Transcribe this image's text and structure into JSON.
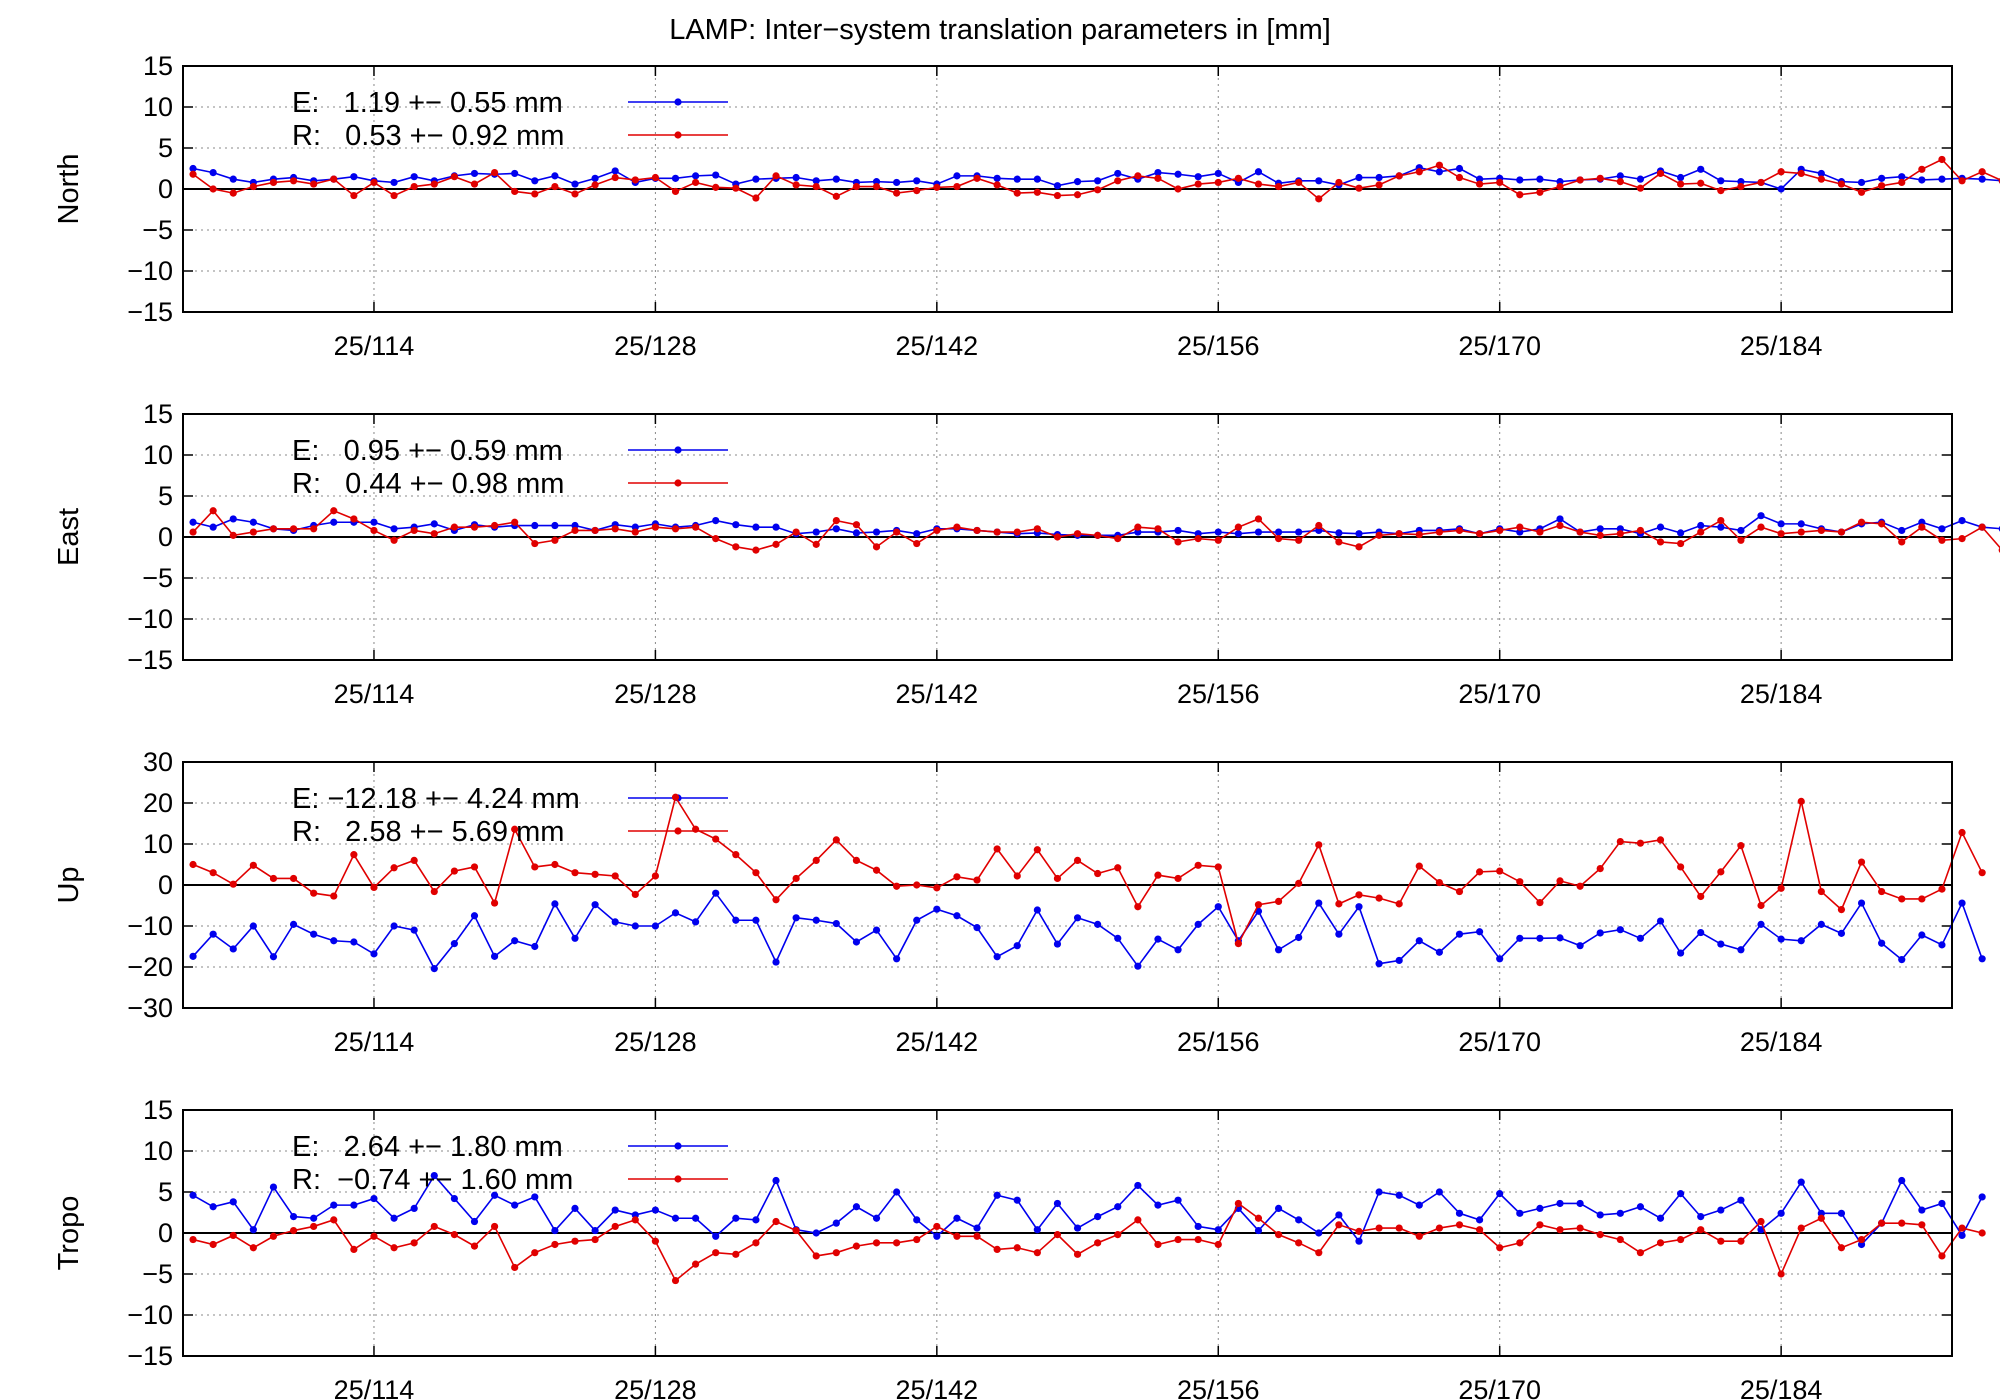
{
  "title": "LAMP: Inter−system translation parameters in [mm]",
  "colors": {
    "E": "#0000ee",
    "R": "#e00000",
    "grid": "#888888",
    "axis": "#000000"
  },
  "chart_data": [
    {
      "type": "line",
      "ylabel": "North",
      "ylim": [
        -15,
        15
      ],
      "yticks": [
        15,
        10,
        5,
        0,
        -5,
        -10,
        -15
      ],
      "xlim": [
        104.5,
        192.5
      ],
      "xticks": [
        114,
        128,
        142,
        156,
        170,
        184
      ],
      "xtick_labels": [
        "25/114",
        "25/128",
        "25/142",
        "25/156",
        "25/170",
        "25/184"
      ],
      "grid": true,
      "legend": "top-left",
      "series": [
        {
          "name": "E:   1.19 +− 0.55 mm",
          "color": "#0000ee",
          "values": [
            2.5,
            2.0,
            1.2,
            0.8,
            1.2,
            1.4,
            1.0,
            1.2,
            1.5,
            1.0,
            0.8,
            1.5,
            1.0,
            1.6,
            1.9,
            1.8,
            1.9,
            1.0,
            1.6,
            0.6,
            1.3,
            2.2,
            0.8,
            1.3,
            1.3,
            1.6,
            1.7,
            0.6,
            1.2,
            1.3,
            1.4,
            1.0,
            1.2,
            0.8,
            0.9,
            0.8,
            1.0,
            0.6,
            1.6,
            1.6,
            1.3,
            1.2,
            1.2,
            0.4,
            0.9,
            1.0,
            1.9,
            1.2,
            2.0,
            1.8,
            1.5,
            1.9,
            0.8,
            2.1,
            0.7,
            1.0,
            1.0,
            0.5,
            1.4,
            1.4,
            1.6,
            2.6,
            2.1,
            2.5,
            1.2,
            1.3,
            1.1,
            1.2,
            0.9,
            1.1,
            1.2,
            1.6,
            1.2,
            2.2,
            1.4,
            2.4,
            1.0,
            0.9,
            0.8,
            0.0,
            2.4,
            1.9,
            0.9,
            0.8,
            1.3,
            1.5,
            1.1,
            1.2,
            1.3,
            1.2,
            1.0
          ]
        },
        {
          "name": "R:   0.53 +− 0.92 mm",
          "color": "#e00000",
          "values": [
            1.8,
            0.0,
            -0.5,
            0.3,
            0.8,
            1.0,
            0.6,
            1.2,
            -0.8,
            0.8,
            -0.8,
            0.3,
            0.6,
            1.5,
            0.6,
            2.0,
            -0.3,
            -0.6,
            0.3,
            -0.6,
            0.5,
            1.4,
            1.1,
            1.4,
            -0.3,
            0.8,
            0.2,
            0.1,
            -1.1,
            1.6,
            0.5,
            0.3,
            -0.9,
            0.3,
            0.3,
            -0.5,
            -0.2,
            0.2,
            0.3,
            1.3,
            0.5,
            -0.5,
            -0.4,
            -0.8,
            -0.7,
            -0.1,
            1.0,
            1.6,
            1.3,
            0.0,
            0.6,
            0.8,
            1.3,
            0.6,
            0.3,
            0.8,
            -1.2,
            0.8,
            0.1,
            0.5,
            1.6,
            2.1,
            2.9,
            1.4,
            0.6,
            0.8,
            -0.7,
            -0.4,
            0.3,
            1.1,
            1.3,
            0.9,
            0.1,
            1.9,
            0.6,
            0.7,
            -0.2,
            0.3,
            0.8,
            2.1,
            1.9,
            1.2,
            0.6,
            -0.4,
            0.4,
            0.8,
            2.4,
            3.6,
            1.0,
            2.1,
            1.0
          ]
        }
      ]
    },
    {
      "type": "line",
      "ylabel": "East",
      "ylim": [
        -15,
        15
      ],
      "yticks": [
        15,
        10,
        5,
        0,
        -5,
        -10,
        -15
      ],
      "xlim": [
        104.5,
        192.5
      ],
      "xticks": [
        114,
        128,
        142,
        156,
        170,
        184
      ],
      "xtick_labels": [
        "25/114",
        "25/128",
        "25/142",
        "25/156",
        "25/170",
        "25/184"
      ],
      "grid": true,
      "legend": "top-left",
      "series": [
        {
          "name": "E:   0.95 +− 0.59 mm",
          "color": "#0000ee",
          "values": [
            1.8,
            1.2,
            2.2,
            1.8,
            1.0,
            0.8,
            1.4,
            1.8,
            1.8,
            1.8,
            1.0,
            1.2,
            1.6,
            0.8,
            1.5,
            1.2,
            1.4,
            1.4,
            1.4,
            1.4,
            0.8,
            1.5,
            1.2,
            1.6,
            1.2,
            1.4,
            2.0,
            1.5,
            1.2,
            1.2,
            0.4,
            0.6,
            1.0,
            0.5,
            0.6,
            0.8,
            0.4,
            1.0,
            1.0,
            0.8,
            0.6,
            0.4,
            0.5,
            0.3,
            0.2,
            0.2,
            0.2,
            0.6,
            0.6,
            0.8,
            0.4,
            0.6,
            0.4,
            0.6,
            0.6,
            0.6,
            0.8,
            0.5,
            0.4,
            0.6,
            0.4,
            0.8,
            0.8,
            1.0,
            0.4,
            1.0,
            0.6,
            1.0,
            2.2,
            0.6,
            1.0,
            1.0,
            0.4,
            1.2,
            0.5,
            1.4,
            1.2,
            0.8,
            2.6,
            1.6,
            1.6,
            1.0,
            0.6,
            1.6,
            1.8,
            0.8,
            1.8,
            1.0,
            2.0,
            1.2,
            1.0
          ]
        },
        {
          "name": "R:   0.44 +− 0.98 mm",
          "color": "#e00000",
          "values": [
            0.6,
            3.2,
            0.2,
            0.6,
            1.0,
            1.0,
            1.0,
            3.2,
            2.2,
            0.8,
            -0.4,
            0.8,
            0.4,
            1.2,
            1.2,
            1.4,
            1.8,
            -0.8,
            -0.4,
            0.8,
            0.8,
            1.0,
            0.6,
            1.2,
            1.0,
            1.2,
            -0.2,
            -1.2,
            -1.6,
            -0.9,
            0.6,
            -0.9,
            2.0,
            1.5,
            -1.2,
            0.6,
            -0.8,
            0.8,
            1.2,
            0.8,
            0.6,
            0.6,
            1.0,
            0.0,
            0.4,
            0.2,
            -0.2,
            1.2,
            1.0,
            -0.6,
            -0.2,
            -0.4,
            1.2,
            2.2,
            -0.2,
            -0.4,
            1.4,
            -0.6,
            -1.2,
            0.2,
            0.4,
            0.3,
            0.6,
            0.8,
            0.4,
            0.8,
            1.2,
            0.6,
            1.4,
            0.6,
            0.2,
            0.4,
            0.8,
            -0.6,
            -0.8,
            0.6,
            2.0,
            -0.4,
            1.2,
            0.4,
            0.6,
            0.8,
            0.6,
            1.8,
            1.6,
            -0.6,
            1.2,
            -0.4,
            -0.2,
            1.2,
            -1.6
          ]
        }
      ]
    },
    {
      "type": "line",
      "ylabel": "Up",
      "ylim": [
        -30,
        30
      ],
      "yticks": [
        30,
        20,
        10,
        0,
        -10,
        -20,
        -30
      ],
      "xlim": [
        104.5,
        192.5
      ],
      "xticks": [
        114,
        128,
        142,
        156,
        170,
        184
      ],
      "xtick_labels": [
        "25/114",
        "25/128",
        "25/142",
        "25/156",
        "25/170",
        "25/184"
      ],
      "grid": true,
      "legend": "top-left",
      "series": [
        {
          "name": "E: −12.18 +− 4.24 mm",
          "color": "#0000ee",
          "values": [
            -17.4,
            -12.0,
            -15.6,
            -10.0,
            -17.5,
            -9.6,
            -12.0,
            -13.6,
            -13.9,
            -16.8,
            -10.0,
            -11.0,
            -20.4,
            -14.3,
            -7.5,
            -17.4,
            -13.6,
            -15.0,
            -4.6,
            -13.0,
            -4.8,
            -9.0,
            -10.0,
            -10.0,
            -6.8,
            -9.0,
            -2.0,
            -8.6,
            -8.6,
            -18.8,
            -8.0,
            -8.6,
            -9.4,
            -13.9,
            -11.0,
            -18.0,
            -8.6,
            -5.9,
            -7.5,
            -10.4,
            -17.5,
            -14.8,
            -6.1,
            -14.4,
            -8.0,
            -9.6,
            -13.0,
            -19.8,
            -13.2,
            -15.8,
            -9.6,
            -5.3,
            -13.6,
            -6.4,
            -15.8,
            -12.8,
            -4.4,
            -12.0,
            -5.3,
            -19.2,
            -18.4,
            -13.6,
            -16.4,
            -12.0,
            -11.4,
            -18.0,
            -13.0,
            -13.0,
            -12.9,
            -14.8,
            -11.7,
            -10.9,
            -13.0,
            -8.8,
            -16.6,
            -11.6,
            -14.4,
            -15.8,
            -9.6,
            -13.2,
            -13.6,
            -9.6,
            -11.8,
            -4.4,
            -14.2,
            -18.2,
            -12.2,
            -14.6,
            -4.4,
            -18.0
          ]
        },
        {
          "name": "R:   2.58 +− 5.69 mm",
          "color": "#e00000",
          "values": [
            5.0,
            3.0,
            0.2,
            4.8,
            1.6,
            1.6,
            -2.0,
            -2.7,
            7.4,
            -0.6,
            4.2,
            6.0,
            -1.6,
            3.4,
            4.4,
            -4.4,
            13.6,
            4.4,
            5.0,
            3.0,
            2.6,
            2.2,
            -2.3,
            2.2,
            21.4,
            13.6,
            11.2,
            7.4,
            3.0,
            -3.6,
            1.6,
            6.0,
            11.0,
            6.0,
            3.6,
            -0.3,
            0.0,
            -0.7,
            2.0,
            1.2,
            8.8,
            2.2,
            8.6,
            1.6,
            6.0,
            2.8,
            4.2,
            -5.3,
            2.4,
            1.6,
            4.8,
            4.4,
            -14.3,
            -4.8,
            -4.0,
            0.4,
            9.8,
            -4.6,
            -2.4,
            -3.2,
            -4.6,
            4.6,
            0.6,
            -1.6,
            3.2,
            3.4,
            0.8,
            -4.3,
            1.0,
            -0.3,
            4.0,
            10.6,
            10.2,
            11.0,
            4.4,
            -2.8,
            3.2,
            9.6,
            -5.0,
            -0.8,
            20.4,
            -1.6,
            -6.0,
            5.6,
            -1.6,
            -3.4,
            -3.4,
            -1.0,
            12.8,
            3.0
          ]
        }
      ]
    },
    {
      "type": "line",
      "ylabel": "Tropo",
      "ylim": [
        -15,
        15
      ],
      "yticks": [
        15,
        10,
        5,
        0,
        -5,
        -10,
        -15
      ],
      "xlim": [
        104.5,
        192.5
      ],
      "xticks": [
        114,
        128,
        142,
        156,
        170,
        184
      ],
      "xtick_labels": [
        "25/114",
        "25/128",
        "25/142",
        "25/156",
        "25/170",
        "25/184"
      ],
      "grid": true,
      "legend": "top-left",
      "series": [
        {
          "name": "E:   2.64 +− 1.80 mm",
          "color": "#0000ee",
          "values": [
            4.6,
            3.2,
            3.8,
            0.4,
            5.6,
            2.0,
            1.8,
            3.4,
            3.4,
            4.2,
            1.8,
            3.0,
            7.0,
            4.2,
            1.4,
            4.6,
            3.4,
            4.4,
            0.3,
            3.0,
            0.3,
            2.8,
            2.2,
            2.8,
            1.8,
            1.8,
            -0.4,
            1.8,
            1.6,
            6.4,
            0.4,
            0.0,
            1.2,
            3.2,
            1.8,
            5.0,
            1.6,
            -0.4,
            1.8,
            0.6,
            4.6,
            4.0,
            0.4,
            3.6,
            0.6,
            2.0,
            3.2,
            5.8,
            3.4,
            4.0,
            0.8,
            0.4,
            3.0,
            0.3,
            3.0,
            1.6,
            0.0,
            2.2,
            -1.0,
            5.0,
            4.6,
            3.4,
            5.0,
            2.4,
            1.6,
            4.8,
            2.4,
            3.0,
            3.6,
            3.6,
            2.2,
            2.4,
            3.2,
            1.8,
            4.8,
            2.0,
            2.8,
            4.0,
            0.4,
            2.4,
            6.2,
            2.4,
            2.4,
            -1.4,
            1.2,
            6.4,
            2.8,
            3.6,
            -0.3,
            4.4
          ]
        },
        {
          "name": "R:  −0.74 +− 1.60 mm",
          "color": "#e00000",
          "values": [
            -0.8,
            -1.4,
            -0.3,
            -1.8,
            -0.4,
            0.3,
            0.8,
            1.6,
            -2.0,
            -0.4,
            -1.8,
            -1.2,
            0.8,
            -0.2,
            -1.6,
            0.8,
            -4.2,
            -2.4,
            -1.4,
            -1.0,
            -0.8,
            0.8,
            1.6,
            -1.0,
            -5.8,
            -3.8,
            -2.4,
            -2.6,
            -1.2,
            1.4,
            0.3,
            -2.8,
            -2.4,
            -1.6,
            -1.2,
            -1.2,
            -0.8,
            0.8,
            -0.4,
            -0.4,
            -2.0,
            -1.8,
            -2.4,
            -0.2,
            -2.6,
            -1.2,
            -0.2,
            1.6,
            -1.4,
            -0.8,
            -0.8,
            -1.4,
            3.6,
            1.8,
            -0.2,
            -1.2,
            -2.4,
            1.0,
            0.2,
            0.6,
            0.6,
            -0.4,
            0.6,
            1.0,
            0.4,
            -1.8,
            -1.2,
            1.0,
            0.4,
            0.6,
            -0.2,
            -0.8,
            -2.4,
            -1.2,
            -0.8,
            0.4,
            -1.0,
            -1.0,
            1.4,
            -5.0,
            0.6,
            1.8,
            -1.8,
            -0.8,
            1.2,
            1.2,
            1.0,
            -2.8,
            0.6,
            0.0
          ]
        }
      ]
    }
  ]
}
